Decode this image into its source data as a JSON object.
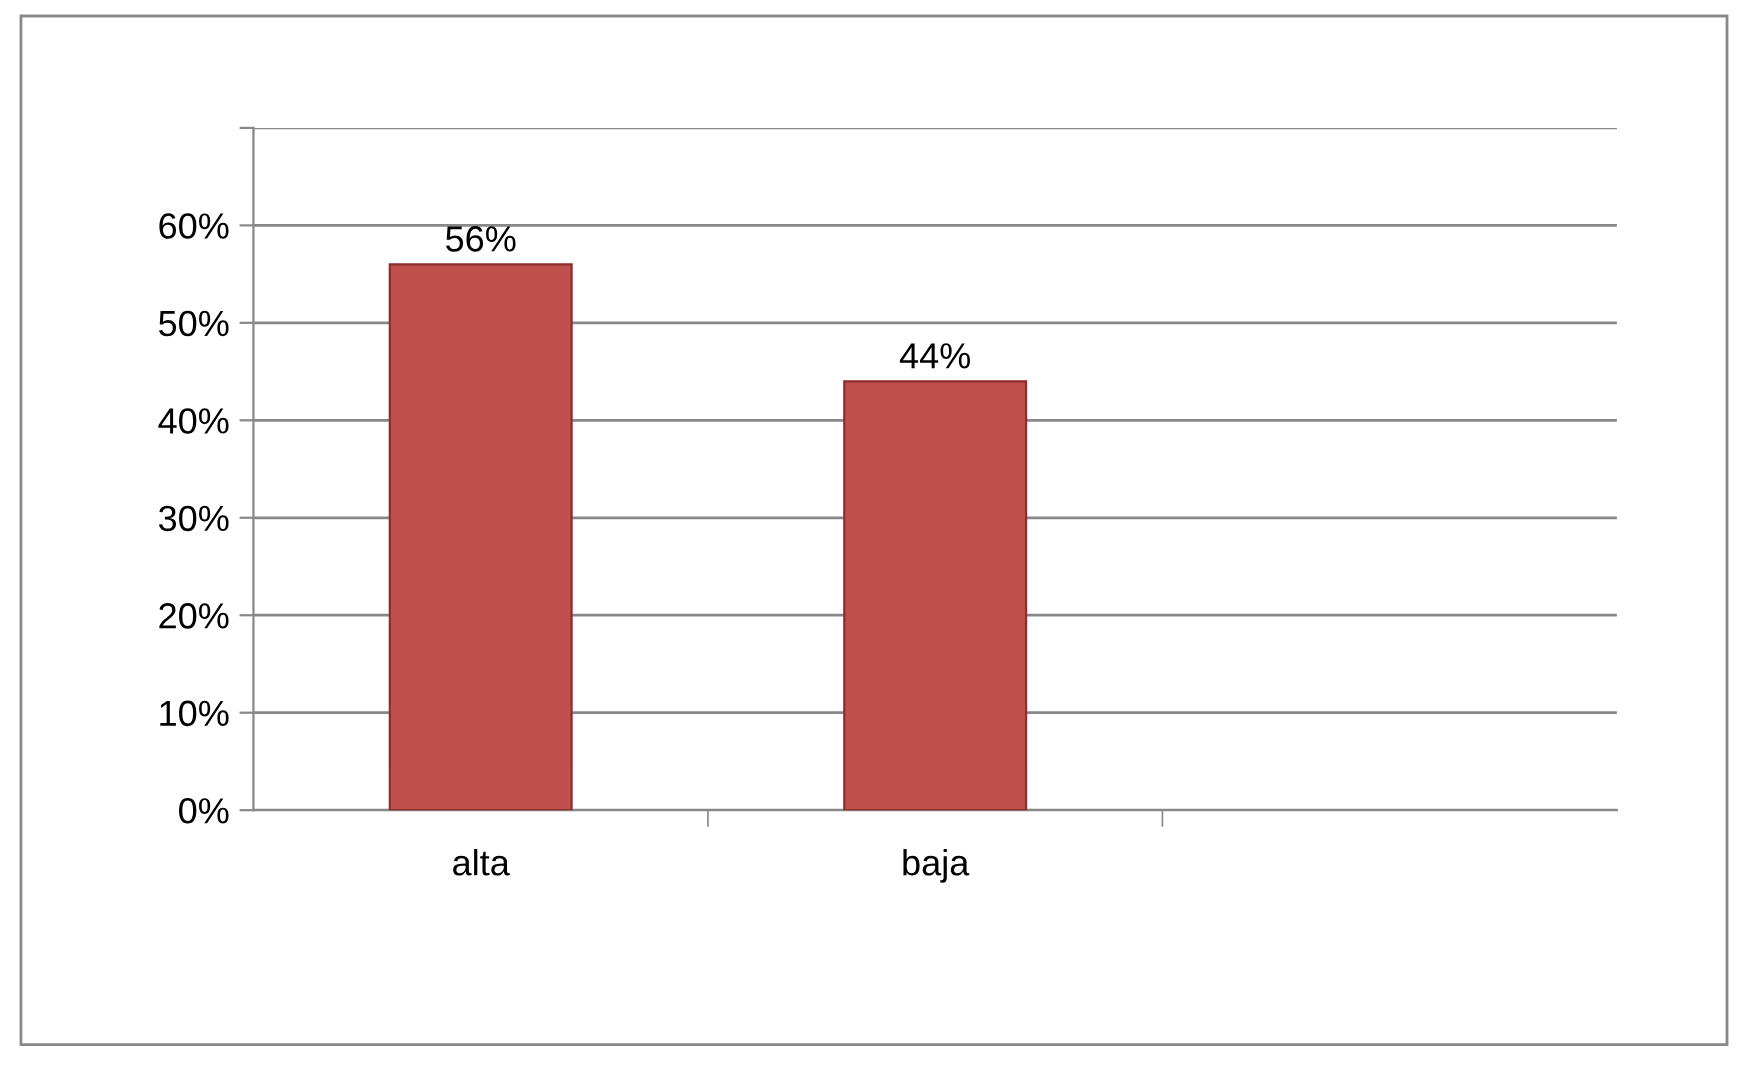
{
  "chart_data": {
    "type": "bar",
    "categories": [
      "alta",
      "baja",
      null
    ],
    "values": [
      56,
      44,
      null
    ],
    "value_labels": [
      "56%",
      "44%",
      null
    ],
    "color": "#c0504d",
    "ylim": [
      0,
      70
    ],
    "yticks": [
      {
        "value": 0,
        "label": "0%"
      },
      {
        "value": 10,
        "label": "10%"
      },
      {
        "value": 20,
        "label": "20%"
      },
      {
        "value": 30,
        "label": "30%"
      },
      {
        "value": 40,
        "label": "40%"
      },
      {
        "value": 50,
        "label": "50%"
      },
      {
        "value": 60,
        "label": "60%"
      },
      {
        "value": 70,
        "label": null
      }
    ],
    "grid": "y"
  }
}
